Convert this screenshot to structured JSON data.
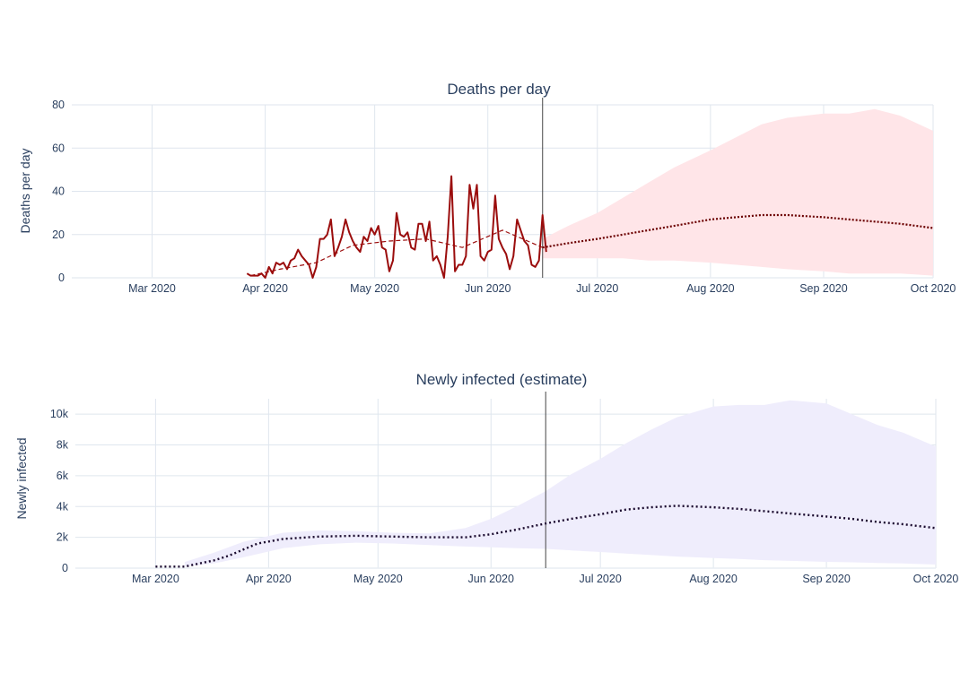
{
  "chart_data": [
    {
      "type": "line",
      "title": "Deaths per day",
      "ylabel": "Deaths per day",
      "xlabel": "",
      "x_ticks": [
        "Mar 2020",
        "Apr 2020",
        "May 2020",
        "Jun 2020",
        "Jul 2020",
        "Aug 2020",
        "Sep 2020",
        "Oct 2020"
      ],
      "x_range": [
        "2020-02-08",
        "2020-10-01"
      ],
      "ylim": [
        0,
        80
      ],
      "y_ticks": [
        0,
        20,
        40,
        60,
        80
      ],
      "y_tick_labels": [
        "0",
        "20",
        "40",
        "60",
        "80"
      ],
      "forecast_start": "2020-06-16",
      "grid": true,
      "colors": {
        "observed": "#9b0d0d",
        "forecast": "#6b0000",
        "band": "#ffe5e8"
      },
      "series": [
        {
          "style": "observed",
          "x": [
            "2020-03-27",
            "2020-03-28",
            "2020-03-29",
            "2020-03-30",
            "2020-03-31",
            "2020-04-01",
            "2020-04-02",
            "2020-04-03",
            "2020-04-04",
            "2020-04-05",
            "2020-04-06",
            "2020-04-07",
            "2020-04-08",
            "2020-04-09",
            "2020-04-10",
            "2020-04-11",
            "2020-04-12",
            "2020-04-13",
            "2020-04-14",
            "2020-04-15",
            "2020-04-16",
            "2020-04-17",
            "2020-04-18",
            "2020-04-19",
            "2020-04-20",
            "2020-04-21",
            "2020-04-22",
            "2020-04-23",
            "2020-04-24",
            "2020-04-25",
            "2020-04-26",
            "2020-04-27",
            "2020-04-28",
            "2020-04-29",
            "2020-04-30",
            "2020-05-01",
            "2020-05-02",
            "2020-05-03",
            "2020-05-04",
            "2020-05-05",
            "2020-05-06",
            "2020-05-07",
            "2020-05-08",
            "2020-05-09",
            "2020-05-10",
            "2020-05-11",
            "2020-05-12",
            "2020-05-13",
            "2020-05-14",
            "2020-05-15",
            "2020-05-16",
            "2020-05-17",
            "2020-05-18",
            "2020-05-19",
            "2020-05-20",
            "2020-05-21",
            "2020-05-22",
            "2020-05-23",
            "2020-05-24",
            "2020-05-25",
            "2020-05-26",
            "2020-05-27",
            "2020-05-28",
            "2020-05-29",
            "2020-05-30",
            "2020-05-31",
            "2020-06-01",
            "2020-06-02",
            "2020-06-03",
            "2020-06-04",
            "2020-06-05",
            "2020-06-06",
            "2020-06-07",
            "2020-06-08",
            "2020-06-09",
            "2020-06-10",
            "2020-06-11",
            "2020-06-12",
            "2020-06-13",
            "2020-06-14",
            "2020-06-15",
            "2020-06-16",
            "2020-06-17"
          ],
          "y": [
            2,
            1,
            1,
            1,
            2,
            0,
            5,
            2,
            7,
            6,
            7,
            4,
            8,
            9,
            13,
            10,
            8,
            6,
            0,
            5,
            18,
            18,
            20,
            27,
            10,
            14,
            19,
            27,
            21,
            17,
            14,
            12,
            19,
            17,
            23,
            20,
            24,
            14,
            13,
            3,
            8,
            30,
            20,
            19,
            21,
            14,
            13,
            25,
            25,
            17,
            26,
            8,
            10,
            6,
            0,
            19,
            47,
            3,
            6,
            6,
            10,
            43,
            32,
            43,
            10,
            8,
            12,
            13,
            38,
            18,
            14,
            11,
            4,
            10,
            27,
            22,
            17,
            15,
            6,
            5,
            8,
            29,
            12
          ]
        },
        {
          "style": "trend",
          "x": [
            "2020-03-28",
            "2020-04-05",
            "2020-04-15",
            "2020-04-25",
            "2020-05-05",
            "2020-05-15",
            "2020-05-25",
            "2020-06-05",
            "2020-06-16"
          ],
          "y": [
            1,
            4,
            7,
            15,
            17,
            18,
            14,
            22,
            14
          ]
        },
        {
          "style": "forecast",
          "x": [
            "2020-06-16",
            "2020-06-23",
            "2020-07-01",
            "2020-07-08",
            "2020-07-15",
            "2020-07-22",
            "2020-08-01",
            "2020-08-08",
            "2020-08-15",
            "2020-08-22",
            "2020-09-01",
            "2020-09-08",
            "2020-09-15",
            "2020-09-22",
            "2020-10-01"
          ],
          "y": [
            14,
            16,
            18,
            20,
            22,
            24,
            27,
            28,
            29,
            29,
            28,
            27,
            26,
            25,
            23
          ]
        }
      ],
      "band": {
        "x": [
          "2020-06-16",
          "2020-06-23",
          "2020-07-01",
          "2020-07-08",
          "2020-07-15",
          "2020-07-22",
          "2020-08-01",
          "2020-08-08",
          "2020-08-15",
          "2020-08-22",
          "2020-09-01",
          "2020-09-08",
          "2020-09-15",
          "2020-09-22",
          "2020-10-01"
        ],
        "low": [
          9,
          9,
          9,
          9,
          8,
          8,
          7,
          6,
          5,
          4,
          3,
          2,
          2,
          2,
          1
        ],
        "high": [
          18,
          24,
          30,
          37,
          44,
          51,
          59,
          65,
          71,
          74,
          76,
          76,
          78,
          75,
          68
        ]
      }
    },
    {
      "type": "line",
      "title": "Newly infected (estimate)",
      "ylabel": "Newly infected",
      "xlabel": "",
      "x_ticks": [
        "Mar 2020",
        "Apr 2020",
        "May 2020",
        "Jun 2020",
        "Jul 2020",
        "Aug 2020",
        "Sep 2020",
        "Oct 2020"
      ],
      "x_range": [
        "2020-02-08",
        "2020-10-01"
      ],
      "ylim": [
        0,
        11000
      ],
      "y_ticks": [
        0,
        2000,
        4000,
        6000,
        8000,
        10000
      ],
      "y_tick_labels": [
        "0",
        "2k",
        "4k",
        "6k",
        "8k",
        "10k"
      ],
      "forecast_start": "2020-06-16",
      "grid": true,
      "colors": {
        "line": "#1a0a2e",
        "band": "#efedfc"
      },
      "series": [
        {
          "style": "dotted",
          "x": [
            "2020-03-01",
            "2020-03-05",
            "2020-03-09",
            "2020-03-13",
            "2020-03-17",
            "2020-03-21",
            "2020-03-25",
            "2020-03-29",
            "2020-04-05",
            "2020-04-15",
            "2020-04-25",
            "2020-05-05",
            "2020-05-15",
            "2020-05-25",
            "2020-06-01",
            "2020-06-08",
            "2020-06-16",
            "2020-06-23",
            "2020-07-01",
            "2020-07-08",
            "2020-07-15",
            "2020-07-22",
            "2020-08-01",
            "2020-08-08",
            "2020-08-15",
            "2020-08-22",
            "2020-09-01",
            "2020-09-08",
            "2020-09-15",
            "2020-09-22",
            "2020-10-01"
          ],
          "y": [
            100,
            100,
            100,
            300,
            500,
            800,
            1200,
            1600,
            1900,
            2050,
            2100,
            2050,
            2000,
            2000,
            2200,
            2500,
            2900,
            3200,
            3500,
            3800,
            3950,
            4050,
            3950,
            3850,
            3700,
            3550,
            3350,
            3200,
            3000,
            2850,
            2600
          ]
        }
      ],
      "band": {
        "x": [
          "2020-03-09",
          "2020-03-17",
          "2020-03-25",
          "2020-04-05",
          "2020-04-15",
          "2020-04-25",
          "2020-05-05",
          "2020-05-15",
          "2020-05-25",
          "2020-06-01",
          "2020-06-08",
          "2020-06-16",
          "2020-06-23",
          "2020-07-01",
          "2020-07-08",
          "2020-07-15",
          "2020-07-22",
          "2020-08-01",
          "2020-08-08",
          "2020-08-15",
          "2020-08-22",
          "2020-09-01",
          "2020-09-08",
          "2020-09-15",
          "2020-09-22",
          "2020-10-01"
        ],
        "low": [
          100,
          300,
          700,
          1300,
          1550,
          1650,
          1600,
          1500,
          1400,
          1350,
          1300,
          1250,
          1150,
          1050,
          950,
          850,
          750,
          650,
          600,
          520,
          470,
          410,
          380,
          330,
          300,
          230
        ],
        "high": [
          400,
          1000,
          1700,
          2300,
          2450,
          2400,
          2300,
          2250,
          2600,
          3200,
          4000,
          5000,
          6100,
          7100,
          8100,
          9000,
          9800,
          10500,
          10600,
          10600,
          10900,
          10700,
          10000,
          9300,
          8800,
          7900
        ]
      }
    }
  ]
}
